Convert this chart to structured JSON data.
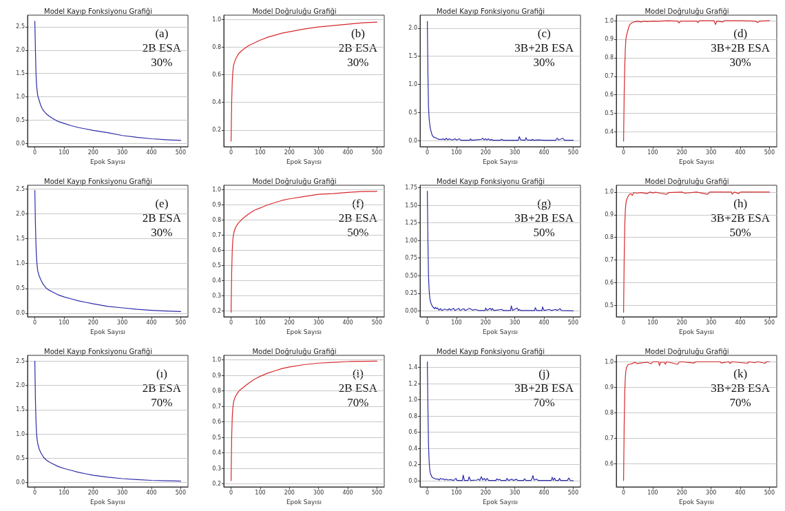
{
  "chart_data": [
    {
      "type": "line",
      "title": "Model Kayıp Fonksiyonu Grafiği",
      "xlabel": "Epok Sayısı",
      "annotations": [
        "(a)",
        "2B ESA",
        "30%"
      ],
      "grid": "y",
      "marker": "none",
      "line_style": "solid",
      "xlim": [
        -25,
        525
      ],
      "xticks": [
        0,
        100,
        200,
        300,
        400,
        500
      ],
      "ylim": [
        -0.07,
        2.75
      ],
      "yticks": [
        {
          "value": 0,
          "label": "0.0"
        },
        0.5,
        {
          "value": 1,
          "label": "1.0"
        },
        1.5,
        {
          "value": 2,
          "label": "2.0"
        },
        2.5
      ],
      "series": [
        {
          "color": "#2a2aa8",
          "x": [
            0,
            2,
            4,
            6,
            8,
            10,
            15,
            20,
            25,
            30,
            40,
            50,
            60,
            80,
            100,
            125,
            150,
            175,
            200,
            250,
            300,
            350,
            400,
            450,
            500
          ],
          "values": [
            2.62,
            2.0,
            1.5,
            1.25,
            1.12,
            1.02,
            0.92,
            0.82,
            0.75,
            0.7,
            0.63,
            0.58,
            0.54,
            0.47,
            0.43,
            0.38,
            0.34,
            0.31,
            0.28,
            0.23,
            0.17,
            0.13,
            0.1,
            0.08,
            0.065
          ]
        }
      ]
    },
    {
      "type": "line",
      "title": "Model Doğruluğu Grafiği",
      "xlabel": "Epok Sayısı",
      "annotations": [
        "(b)",
        "2B ESA",
        "30%"
      ],
      "grid": "y",
      "marker": "none",
      "line_style": "solid",
      "xlim": [
        -25,
        525
      ],
      "xticks": [
        0,
        100,
        200,
        300,
        400,
        500
      ],
      "ylim": [
        0.08,
        1.03
      ],
      "yticks": [
        0.2,
        0.4,
        0.6,
        0.8,
        {
          "value": 1,
          "label": "1.0"
        }
      ],
      "series": [
        {
          "color": "#d62728",
          "x": [
            0,
            2,
            4,
            6,
            8,
            10,
            15,
            20,
            25,
            30,
            40,
            50,
            60,
            80,
            100,
            125,
            150,
            175,
            200,
            250,
            300,
            350,
            400,
            450,
            500
          ],
          "values": [
            0.12,
            0.4,
            0.55,
            0.62,
            0.66,
            0.68,
            0.71,
            0.73,
            0.75,
            0.76,
            0.78,
            0.795,
            0.81,
            0.83,
            0.85,
            0.87,
            0.885,
            0.9,
            0.91,
            0.93,
            0.945,
            0.955,
            0.965,
            0.975,
            0.98
          ]
        }
      ]
    },
    {
      "type": "line",
      "title": "Model Kayıp Fonksiyonu Grafiği",
      "xlabel": "Epok Sayısı",
      "annotations": [
        "(c)",
        "3B+2B ESA",
        "30%"
      ],
      "grid": "y",
      "marker": "none",
      "line_style": "solid",
      "xlim": [
        -25,
        525
      ],
      "xticks": [
        0,
        100,
        200,
        300,
        400,
        500
      ],
      "ylim": [
        -0.11,
        2.23
      ],
      "yticks": [
        {
          "value": 0,
          "label": "0.0"
        },
        0.5,
        {
          "value": 1,
          "label": "1.0"
        },
        1.5,
        {
          "value": 2,
          "label": "2.0"
        }
      ],
      "series": [
        {
          "color": "#2a2aa8",
          "x": [
            0,
            2,
            4,
            6,
            8,
            10,
            12,
            15,
            18,
            22,
            28,
            35,
            40,
            50,
            55,
            60,
            65,
            70,
            75,
            85,
            95,
            100,
            110,
            115,
            145,
            148,
            152,
            185,
            190,
            195,
            200,
            205,
            210,
            215,
            220,
            225,
            250,
            255,
            260,
            312,
            315,
            320,
            335,
            338,
            342,
            358,
            360,
            365,
            380,
            400,
            440,
            445,
            450,
            465,
            470,
            500
          ],
          "values": [
            2.12,
            1.2,
            0.6,
            0.4,
            0.3,
            0.22,
            0.18,
            0.12,
            0.08,
            0.06,
            0.05,
            0.03,
            0.02,
            0.02,
            0.03,
            0.01,
            0.04,
            0.01,
            0.03,
            0.01,
            0.03,
            0.01,
            0.03,
            0.005,
            0.005,
            0.03,
            0.005,
            0.02,
            0.04,
            0.01,
            0.03,
            0.01,
            0.03,
            0.005,
            0.02,
            0.005,
            0.005,
            0.02,
            0.005,
            0.005,
            0.07,
            0.01,
            0.005,
            0.05,
            0.01,
            0.005,
            0.02,
            0.005,
            0.01,
            0.005,
            0.005,
            0.04,
            0.01,
            0.04,
            0.005,
            0.005
          ]
        }
      ]
    },
    {
      "type": "line",
      "title": "Model Doğruluğu Grafiği",
      "xlabel": "Epok Sayısı",
      "annotations": [
        "(d)",
        "3B+2B ESA",
        "30%"
      ],
      "grid": "y",
      "marker": "none",
      "line_style": "solid",
      "xlim": [
        -25,
        525
      ],
      "xticks": [
        0,
        100,
        200,
        300,
        400,
        500
      ],
      "ylim": [
        0.32,
        1.03
      ],
      "yticks": [
        0.4,
        0.5,
        0.6,
        0.7,
        0.8,
        0.9,
        {
          "value": 1,
          "label": "1.0"
        }
      ],
      "series": [
        {
          "color": "#d62728",
          "x": [
            0,
            2,
            4,
            6,
            8,
            10,
            15,
            20,
            25,
            30,
            40,
            50,
            60,
            70,
            80,
            100,
            120,
            150,
            185,
            190,
            195,
            250,
            255,
            260,
            310,
            315,
            320,
            340,
            345,
            400,
            450,
            460,
            465,
            500
          ],
          "values": [
            0.35,
            0.6,
            0.75,
            0.85,
            0.9,
            0.92,
            0.95,
            0.975,
            0.985,
            0.99,
            0.995,
            0.997,
            0.993,
            0.998,
            0.995,
            0.998,
            0.997,
            1.0,
            0.998,
            0.988,
            0.998,
            0.998,
            0.99,
            1.0,
            1.0,
            0.98,
            0.998,
            0.993,
            1.0,
            1.0,
            0.998,
            0.99,
            0.998,
            1.0
          ]
        }
      ]
    },
    {
      "type": "line",
      "title": "Model Kayıp Fonksiyonu Grafiği",
      "xlabel": "Epok Sayısı",
      "annotations": [
        "(e)",
        "2B ESA",
        "30%"
      ],
      "grid": "y",
      "marker": "none",
      "line_style": "solid",
      "xlim": [
        -25,
        525
      ],
      "xticks": [
        0,
        100,
        200,
        300,
        400,
        500
      ],
      "ylim": [
        -0.07,
        2.57
      ],
      "yticks": [
        {
          "value": 0,
          "label": "0.0"
        },
        0.5,
        {
          "value": 1,
          "label": "1.0"
        },
        1.5,
        {
          "value": 2,
          "label": "2.0"
        },
        2.5
      ],
      "series": [
        {
          "color": "#2a2aa8",
          "x": [
            0,
            2,
            4,
            6,
            8,
            10,
            15,
            20,
            25,
            30,
            40,
            50,
            60,
            80,
            100,
            125,
            150,
            175,
            200,
            250,
            300,
            350,
            400,
            450,
            500
          ],
          "values": [
            2.47,
            1.8,
            1.35,
            1.1,
            0.95,
            0.85,
            0.75,
            0.68,
            0.62,
            0.57,
            0.5,
            0.46,
            0.43,
            0.37,
            0.33,
            0.29,
            0.25,
            0.22,
            0.19,
            0.14,
            0.11,
            0.08,
            0.06,
            0.045,
            0.035
          ]
        }
      ]
    },
    {
      "type": "line",
      "title": "Model Doğruluğu Grafiği",
      "xlabel": "Epok Sayısı",
      "annotations": [
        "(f)",
        "2B ESA",
        "50%"
      ],
      "grid": "y",
      "marker": "none",
      "line_style": "solid",
      "xlim": [
        -25,
        525
      ],
      "xticks": [
        0,
        100,
        200,
        300,
        400,
        500
      ],
      "ylim": [
        0.16,
        1.03
      ],
      "yticks": [
        0.2,
        0.3,
        0.4,
        0.5,
        0.6,
        0.7,
        0.8,
        0.9,
        {
          "value": 1,
          "label": "1.0"
        }
      ],
      "series": [
        {
          "color": "#d62728",
          "x": [
            0,
            2,
            4,
            6,
            8,
            10,
            15,
            20,
            25,
            30,
            40,
            50,
            60,
            80,
            100,
            125,
            150,
            175,
            200,
            250,
            300,
            350,
            400,
            450,
            500
          ],
          "values": [
            0.19,
            0.45,
            0.6,
            0.67,
            0.7,
            0.72,
            0.75,
            0.765,
            0.78,
            0.79,
            0.81,
            0.825,
            0.84,
            0.865,
            0.88,
            0.9,
            0.915,
            0.93,
            0.94,
            0.955,
            0.97,
            0.975,
            0.983,
            0.988,
            0.99
          ]
        }
      ]
    },
    {
      "type": "line",
      "title": "Model Kayıp Fonksiyonu Grafiği",
      "xlabel": "Epok Sayısı",
      "annotations": [
        "(g)",
        "3B+2B ESA",
        "50%"
      ],
      "grid": "y",
      "marker": "none",
      "line_style": "solid",
      "xlim": [
        -25,
        525
      ],
      "xticks": [
        0,
        100,
        200,
        300,
        400,
        500
      ],
      "ylim": [
        -0.085,
        1.785
      ],
      "yticks": [
        {
          "value": 0,
          "label": "0.00"
        },
        0.25,
        {
          "value": 0.5,
          "label": "0.50"
        },
        0.75,
        {
          "value": 1,
          "label": "1.00"
        },
        1.25,
        {
          "value": 1.5,
          "label": "1.50"
        },
        1.75
      ],
      "series": [
        {
          "color": "#2a2aa8",
          "x": [
            0,
            2,
            4,
            6,
            8,
            10,
            15,
            20,
            25,
            28,
            32,
            35,
            40,
            45,
            50,
            60,
            70,
            75,
            80,
            90,
            95,
            108,
            112,
            125,
            130,
            145,
            155,
            165,
            175,
            198,
            200,
            205,
            215,
            220,
            223,
            228,
            255,
            260,
            285,
            288,
            292,
            308,
            312,
            315,
            320,
            368,
            370,
            375,
            393,
            395,
            400,
            418,
            425,
            440,
            445,
            455,
            460,
            500
          ],
          "values": [
            1.7,
            1.0,
            0.5,
            0.3,
            0.2,
            0.14,
            0.08,
            0.05,
            0.03,
            0.05,
            0.03,
            0.04,
            0.01,
            0.03,
            0.005,
            0.025,
            0.01,
            0.03,
            0.01,
            0.035,
            0.005,
            0.035,
            0.005,
            0.03,
            0.005,
            0.035,
            0.01,
            0.02,
            0.005,
            0.005,
            0.04,
            0.005,
            0.035,
            0.01,
            0.035,
            0.005,
            0.02,
            0.005,
            0.005,
            0.07,
            0.005,
            0.04,
            0.005,
            0.02,
            0.005,
            0.005,
            0.045,
            0.005,
            0.005,
            0.055,
            0.005,
            0.02,
            0.005,
            0.02,
            0.005,
            0.03,
            0.005,
            0
          ]
        }
      ]
    },
    {
      "type": "line",
      "title": "Model Doğruluğu Grafiği",
      "xlabel": "Epok Sayısı",
      "annotations": [
        "(h)",
        "3B+2B ESA",
        "50%"
      ],
      "grid": "y",
      "marker": "none",
      "line_style": "solid",
      "xlim": [
        -25,
        525
      ],
      "xticks": [
        0,
        100,
        200,
        300,
        400,
        500
      ],
      "ylim": [
        0.45,
        1.03
      ],
      "yticks": [
        0.5,
        0.6,
        0.7,
        0.8,
        0.9,
        {
          "value": 1,
          "label": "1.0"
        }
      ],
      "series": [
        {
          "color": "#d62728",
          "x": [
            0,
            2,
            4,
            6,
            8,
            10,
            15,
            20,
            25,
            30,
            35,
            45,
            60,
            80,
            90,
            100,
            110,
            125,
            148,
            155,
            200,
            210,
            250,
            288,
            295,
            370,
            372,
            380,
            395,
            400,
            500
          ],
          "values": [
            0.47,
            0.7,
            0.85,
            0.92,
            0.95,
            0.965,
            0.98,
            0.99,
            0.993,
            0.985,
            0.998,
            0.995,
            0.998,
            0.993,
            1.0,
            0.996,
            0.999,
            0.995,
            0.99,
            0.998,
            1.0,
            0.995,
            1.0,
            0.99,
            1.0,
            1.0,
            0.99,
            1.0,
            0.993,
            1.0,
            1.0
          ]
        }
      ]
    },
    {
      "type": "line",
      "title": "Model Kayıp Fonksiyonu Grafiği",
      "xlabel": "Epok Sayısı",
      "annotations": [
        "(ı)",
        "2B ESA",
        "70%"
      ],
      "grid": "y",
      "marker": "none",
      "line_style": "solid",
      "xlim": [
        -25,
        525
      ],
      "xticks": [
        0,
        100,
        200,
        300,
        400,
        500
      ],
      "ylim": [
        -0.09,
        2.62
      ],
      "yticks": [
        {
          "value": 0,
          "label": "0.0"
        },
        0.5,
        {
          "value": 1,
          "label": "1.0"
        },
        1.5,
        {
          "value": 2,
          "label": "2.0"
        },
        2.5
      ],
      "series": [
        {
          "color": "#2a2aa8",
          "x": [
            0,
            2,
            4,
            6,
            8,
            10,
            15,
            20,
            25,
            30,
            40,
            50,
            60,
            80,
            100,
            125,
            150,
            175,
            200,
            250,
            300,
            350,
            400,
            450,
            500
          ],
          "values": [
            2.5,
            1.7,
            1.25,
            1.0,
            0.88,
            0.8,
            0.69,
            0.62,
            0.57,
            0.52,
            0.46,
            0.42,
            0.39,
            0.33,
            0.29,
            0.25,
            0.21,
            0.18,
            0.15,
            0.11,
            0.08,
            0.06,
            0.045,
            0.037,
            0.03
          ]
        }
      ]
    },
    {
      "type": "line",
      "title": "Model Doğruluğu Grafiği",
      "xlabel": "Epok Sayısı",
      "annotations": [
        "(i)",
        "2B ESA",
        "70%"
      ],
      "grid": "y",
      "marker": "none",
      "line_style": "solid",
      "xlim": [
        -25,
        525
      ],
      "xticks": [
        0,
        100,
        200,
        300,
        400,
        500
      ],
      "ylim": [
        0.18,
        1.03
      ],
      "yticks": [
        0.2,
        0.3,
        0.4,
        0.5,
        0.6,
        0.7,
        0.8,
        0.9,
        {
          "value": 1,
          "label": "1.0"
        }
      ],
      "series": [
        {
          "color": "#d62728",
          "x": [
            0,
            2,
            4,
            6,
            8,
            10,
            15,
            20,
            25,
            30,
            40,
            50,
            60,
            80,
            100,
            125,
            150,
            175,
            200,
            250,
            300,
            350,
            400,
            450,
            500
          ],
          "values": [
            0.22,
            0.5,
            0.63,
            0.69,
            0.72,
            0.74,
            0.765,
            0.78,
            0.795,
            0.805,
            0.82,
            0.835,
            0.85,
            0.875,
            0.895,
            0.915,
            0.93,
            0.945,
            0.955,
            0.97,
            0.98,
            0.985,
            0.99,
            0.992,
            0.993
          ]
        }
      ]
    },
    {
      "type": "line",
      "title": "Model Kayıp Fonksiyonu Grafiği",
      "xlabel": "Epok Sayısı",
      "annotations": [
        "(j)",
        "3B+2B ESA",
        "70%"
      ],
      "grid": "y",
      "marker": "none",
      "line_style": "solid",
      "xlim": [
        -25,
        525
      ],
      "xticks": [
        0,
        100,
        200,
        300,
        400,
        500
      ],
      "ylim": [
        -0.075,
        1.55
      ],
      "yticks": [
        {
          "value": 0,
          "label": "0.0"
        },
        0.2,
        0.4,
        0.6,
        0.8,
        {
          "value": 1,
          "label": "1.0"
        },
        1.2,
        1.4
      ],
      "series": [
        {
          "color": "#2a2aa8",
          "x": [
            0,
            2,
            4,
            6,
            8,
            10,
            15,
            20,
            25,
            30,
            35,
            40,
            45,
            50,
            55,
            60,
            65,
            70,
            80,
            90,
            98,
            102,
            120,
            123,
            127,
            140,
            143,
            148,
            170,
            175,
            180,
            185,
            190,
            195,
            200,
            205,
            210,
            235,
            238,
            243,
            248,
            252,
            270,
            273,
            278,
            290,
            295,
            305,
            310,
            330,
            333,
            338,
            355,
            358,
            362,
            366,
            375,
            380,
            425,
            428,
            432,
            436,
            440,
            450,
            453,
            457,
            480,
            485,
            490,
            500
          ],
          "values": [
            1.47,
            0.9,
            0.45,
            0.25,
            0.15,
            0.1,
            0.05,
            0.035,
            0.03,
            0.02,
            0.025,
            0.01,
            0.03,
            0.02,
            0.025,
            0.01,
            0.02,
            0.01,
            0.015,
            0.005,
            0.03,
            0.005,
            0.005,
            0.07,
            0.005,
            0.005,
            0.05,
            0.005,
            0.01,
            0.02,
            0.005,
            0.05,
            0.01,
            0.03,
            0.005,
            0.03,
            0.005,
            0.005,
            0.025,
            0.01,
            0.02,
            0.005,
            0.005,
            0.03,
            0.005,
            0.02,
            0.005,
            0.02,
            0.005,
            0.005,
            0.025,
            0.005,
            0.005,
            0.02,
            0.065,
            0.01,
            0.02,
            0.005,
            0.005,
            0.045,
            0.005,
            0.035,
            0.005,
            0.005,
            0.03,
            0.005,
            0.005,
            0.035,
            0.005,
            0
          ]
        }
      ]
    },
    {
      "type": "line",
      "title": "Model Doğruluğu Grafiği",
      "xlabel": "Epok Sayısı",
      "annotations": [
        "(k)",
        "3B+2B ESA",
        "70%"
      ],
      "grid": "y",
      "marker": "none",
      "line_style": "solid",
      "xlim": [
        -25,
        525
      ],
      "xticks": [
        0,
        100,
        200,
        300,
        400,
        500
      ],
      "ylim": [
        0.51,
        1.025
      ],
      "yticks": [
        0.6,
        0.7,
        0.8,
        0.9,
        {
          "value": 1,
          "label": "1.0"
        }
      ],
      "series": [
        {
          "color": "#d62728",
          "x": [
            0,
            2,
            4,
            6,
            8,
            10,
            15,
            20,
            30,
            40,
            45,
            60,
            80,
            95,
            100,
            120,
            123,
            127,
            140,
            143,
            148,
            185,
            190,
            200,
            240,
            250,
            330,
            335,
            360,
            365,
            370,
            425,
            430,
            450,
            460,
            485,
            490,
            500
          ],
          "values": [
            0.535,
            0.75,
            0.88,
            0.94,
            0.965,
            0.978,
            0.988,
            0.99,
            0.993,
            0.998,
            0.993,
            0.995,
            0.998,
            0.992,
            1.0,
            1.0,
            0.985,
            0.998,
            0.998,
            0.99,
            1.0,
            0.99,
            0.998,
            1.0,
            0.995,
            1.0,
            1.0,
            0.995,
            1.0,
            0.993,
            1.0,
            0.994,
            1.0,
            0.996,
            1.0,
            0.994,
            1.0,
            1.0
          ]
        }
      ]
    }
  ]
}
